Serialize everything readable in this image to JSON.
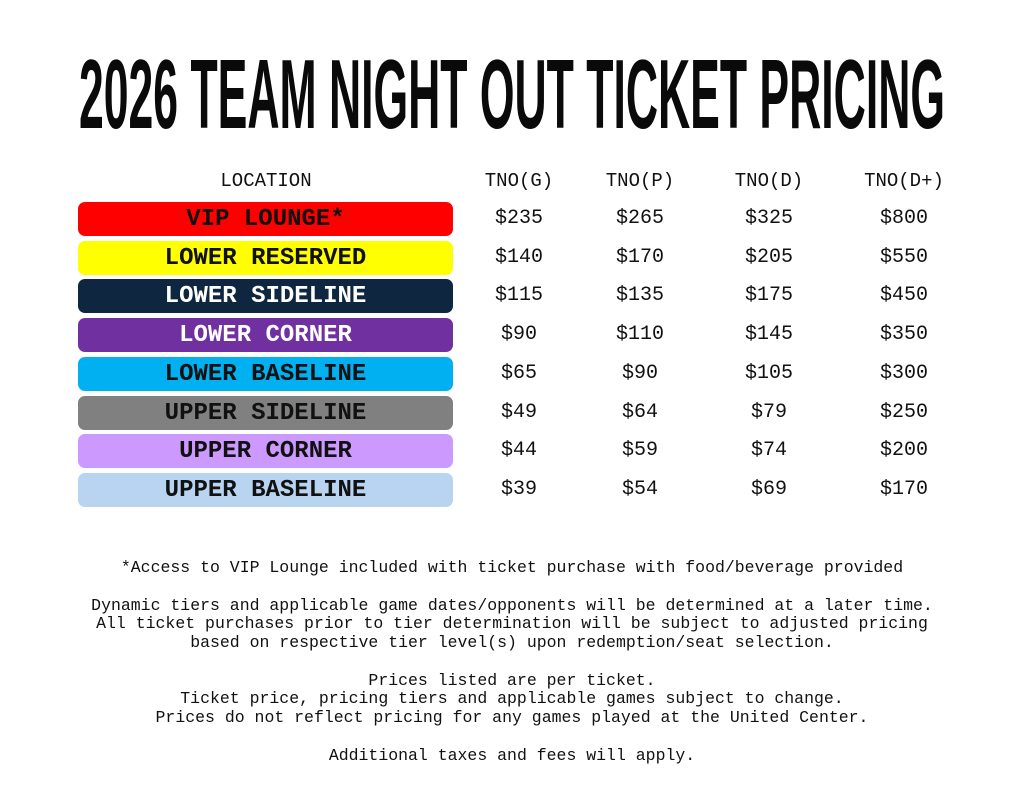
{
  "title": "2026 TEAM NIGHT OUT TICKET PRICING",
  "table": {
    "headers": [
      "LOCATION",
      "TNO(G)",
      "TNO(P)",
      "TNO(D)",
      "TNO(D+)"
    ],
    "rows": [
      {
        "location": "VIP LOUNGE*",
        "color": "#ff0000",
        "text_color": "#111111",
        "prices": [
          "$235",
          "$265",
          "$325",
          "$800"
        ]
      },
      {
        "location": "LOWER RESERVED",
        "color": "#ffff00",
        "text_color": "#111111",
        "prices": [
          "$140",
          "$170",
          "$205",
          "$550"
        ]
      },
      {
        "location": "LOWER SIDELINE",
        "color": "#0e2640",
        "text_color": "#ffffff",
        "prices": [
          "$115",
          "$135",
          "$175",
          "$450"
        ]
      },
      {
        "location": "LOWER CORNER",
        "color": "#7030a0",
        "text_color": "#ffffff",
        "prices": [
          "$90",
          "$110",
          "$145",
          "$350"
        ]
      },
      {
        "location": "LOWER BASELINE",
        "color": "#00b0f0",
        "text_color": "#111111",
        "prices": [
          "$65",
          "$90",
          "$105",
          "$300"
        ]
      },
      {
        "location": "UPPER SIDELINE",
        "color": "#808080",
        "text_color": "#111111",
        "prices": [
          "$49",
          "$64",
          "$79",
          "$250"
        ]
      },
      {
        "location": "UPPER CORNER",
        "color": "#cc99ff",
        "text_color": "#111111",
        "prices": [
          "$44",
          "$59",
          "$74",
          "$200"
        ]
      },
      {
        "location": "UPPER BASELINE",
        "color": "#b8d4f0",
        "text_color": "#111111",
        "prices": [
          "$39",
          "$54",
          "$69",
          "$170"
        ]
      }
    ]
  },
  "notes": [
    "*Access to VIP Lounge included with ticket purchase with food/beverage provided",
    "Dynamic tiers and applicable game dates/opponents will be determined at a later time.",
    "All ticket purchases prior to tier determination will be subject to adjusted pricing",
    "based on respective tier level(s) upon redemption/seat selection.",
    "Prices listed are per ticket.",
    "Ticket price, pricing tiers and applicable games subject to change.",
    "Prices do not reflect pricing for any games played at the United Center.",
    "Additional taxes and fees will apply."
  ]
}
